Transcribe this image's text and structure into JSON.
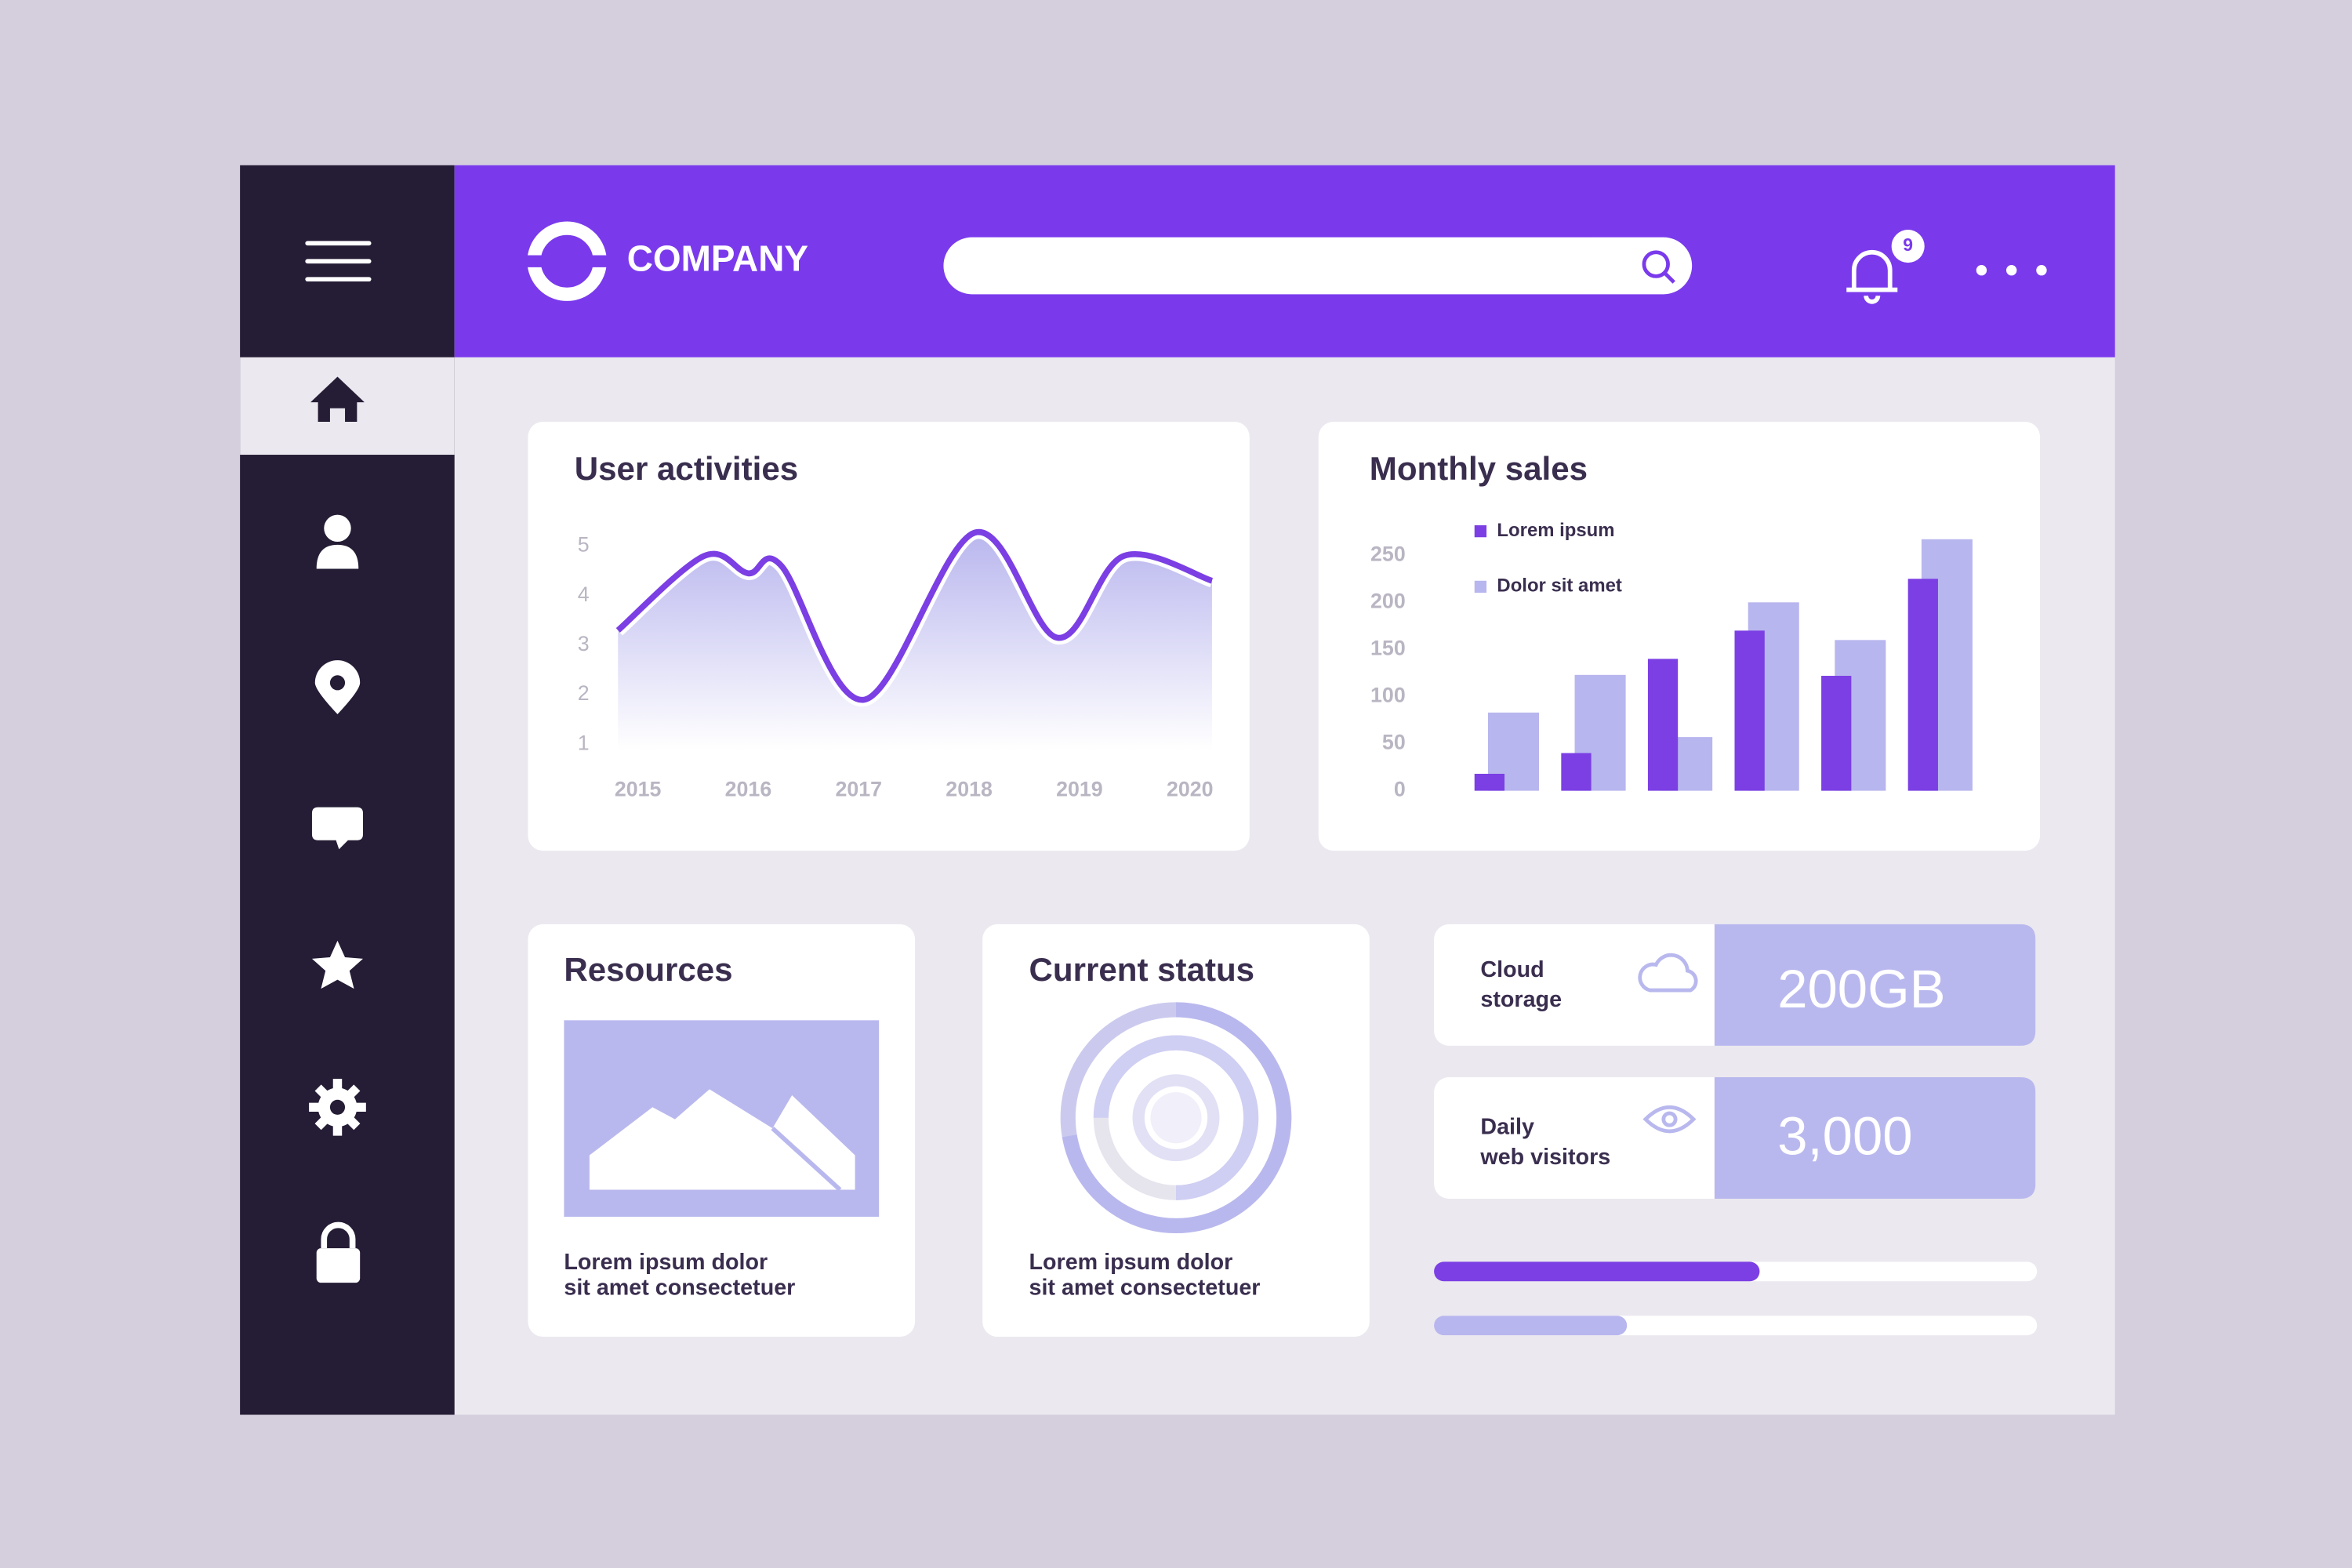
{
  "header": {
    "logo_text": "COMPANY",
    "notification_count": "9"
  },
  "chart_data": [
    {
      "type": "line",
      "title": "User activities",
      "x": [
        2014.82,
        2015.6,
        2016,
        2016.3,
        2017.05,
        2018.05,
        2018.8,
        2019.4,
        2020.2
      ],
      "values": [
        3.3,
        4.8,
        4.45,
        4.6,
        1.9,
        5.27,
        3.15,
        4.8,
        4.3
      ],
      "color": "#7b3fe4",
      "xlim": [
        2014.82,
        2020.2
      ],
      "xticks": [
        2015,
        2016,
        2017,
        2018,
        2019,
        2020
      ],
      "ylim": [
        0.88,
        5.42
      ],
      "yticks": [
        1,
        2,
        3,
        4,
        5
      ]
    },
    {
      "type": "bar",
      "title": "Monthly sales",
      "categories": [
        null,
        null,
        null,
        null,
        null,
        null
      ],
      "series": [
        {
          "name": "Lorem ipsum",
          "color": "#7b3fe4",
          "values": [
            18,
            40,
            140,
            170,
            122,
            225
          ]
        },
        {
          "name": "Dolor sit amet",
          "color": "#b8b6ee",
          "values": [
            83,
            123,
            57,
            200,
            160,
            267
          ]
        }
      ],
      "ylim": [
        0,
        250
      ],
      "yticks": [
        0,
        50,
        100,
        150,
        200,
        250
      ],
      "legend": "top-left"
    }
  ],
  "cards": {
    "resources": {
      "title": "Resources",
      "text_lines": [
        "Lorem ipsum dolor",
        "sit amet consectetuer"
      ]
    },
    "current_status": {
      "title": "Current status",
      "text_lines": [
        "Lorem ipsum dolor",
        "sit amet consectetuer"
      ]
    }
  },
  "stats": [
    {
      "label_lines": [
        "Cloud",
        "storage"
      ],
      "value": "200GB"
    },
    {
      "label_lines": [
        "Daily",
        "web visitors"
      ],
      "value": "3,000"
    }
  ],
  "progress": {
    "xlim": [
      0,
      100
    ],
    "bars": [
      {
        "value": 54,
        "color": "#7b3fe4"
      },
      {
        "value": 32,
        "color": "#b8b6ee"
      }
    ]
  }
}
